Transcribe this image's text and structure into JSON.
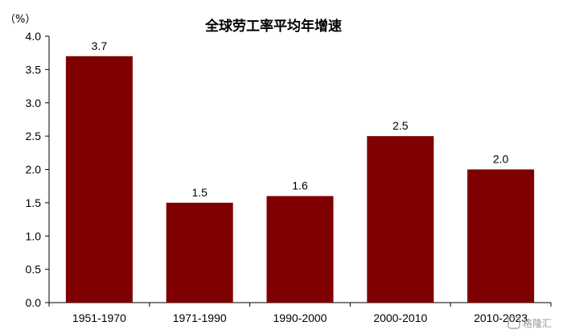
{
  "chart_data": {
    "type": "bar",
    "title": "全球劳工率平均年增速",
    "unit_label": "（%）",
    "categories": [
      "1951-1970",
      "1971-1990",
      "1990-2000",
      "2000-2010",
      "2010-2023"
    ],
    "values": [
      3.7,
      1.5,
      1.6,
      2.5,
      2.0
    ],
    "data_labels": [
      "3.7",
      "1.5",
      "1.6",
      "2.5",
      "2.0"
    ],
    "ylim": [
      0,
      4.0
    ],
    "yticks": [
      0.0,
      0.5,
      1.0,
      1.5,
      2.0,
      2.5,
      3.0,
      3.5,
      4.0
    ],
    "ytick_labels": [
      "0.0",
      "0.5",
      "1.0",
      "1.5",
      "2.0",
      "2.5",
      "3.0",
      "3.5",
      "4.0"
    ],
    "bar_color": "#7f0000",
    "grid": false,
    "legend": "none"
  },
  "watermark": {
    "text": "格隆汇"
  }
}
